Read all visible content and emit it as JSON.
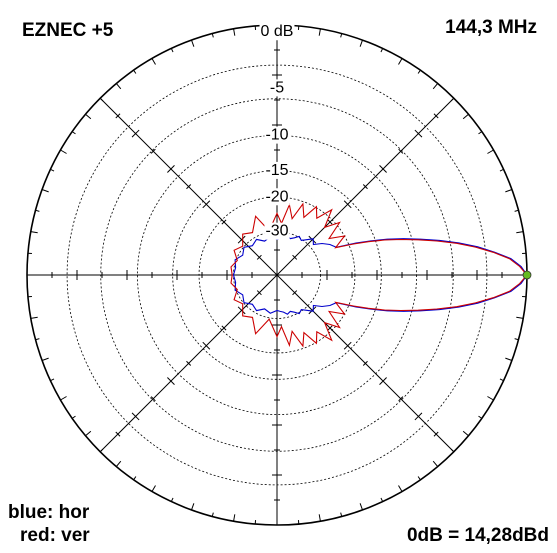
{
  "header": {
    "program": "EZNEC +5",
    "frequency": "144,3 MHz"
  },
  "footer": {
    "legend_line_1": "blue: hor",
    "legend_line_2": "red: ver",
    "reference": "0dB = 14,28dBd"
  },
  "chart_data": {
    "type": "polar",
    "radial_scale": "dB, outer ring = 0 dB",
    "radial_ticks": [
      "0 dB",
      "-5",
      "-10",
      "-15",
      "-20",
      "-30"
    ],
    "radial_tick_values": [
      0,
      -5,
      -10,
      -15,
      -20,
      -30
    ],
    "angle_zero": "right (3 o'clock), counter-clockwise",
    "angular_grid_step_deg": 45,
    "max_marker_angle_deg": 0,
    "series": [
      {
        "name": "hor",
        "color": "#0000cc",
        "angles_deg": [
          0,
          2,
          4,
          6,
          8,
          10,
          12,
          14,
          16,
          18,
          20,
          22,
          25,
          30,
          35,
          40,
          45,
          50,
          55,
          60,
          65,
          70,
          75,
          80,
          85,
          90,
          100,
          110,
          120,
          130,
          140,
          150,
          160,
          170,
          180
        ],
        "gain_db": [
          0,
          -0.4,
          -1.1,
          -2.3,
          -3.6,
          -5.2,
          -7.0,
          -9.0,
          -11.0,
          -13.2,
          -15.8,
          -18.5,
          -23.0,
          -24.2,
          -26.0,
          -28.5,
          -27.2,
          -29.0,
          -30.5,
          -29.6,
          -31.0,
          -32.0,
          -31.2,
          -32.5,
          -33.0,
          -33.5,
          -32.0,
          -33.2,
          -31.0,
          -32.2,
          -30.2,
          -31.6,
          -29.6,
          -30.6,
          -30.0
        ]
      },
      {
        "name": "ver",
        "color": "#cc0000",
        "angles_deg": [
          0,
          2,
          4,
          6,
          8,
          10,
          12,
          14,
          16,
          18,
          20,
          22,
          25,
          30,
          35,
          40,
          45,
          50,
          55,
          60,
          65,
          70,
          75,
          80,
          85,
          90,
          100,
          110,
          120,
          130,
          140,
          150,
          160,
          170,
          180
        ],
        "gain_db": [
          0,
          -0.5,
          -1.2,
          -2.4,
          -3.8,
          -5.4,
          -7.3,
          -9.3,
          -11.4,
          -13.6,
          -16.2,
          -19.0,
          -23.2,
          -20.0,
          -23.5,
          -19.2,
          -22.5,
          -18.5,
          -22.0,
          -19.8,
          -23.5,
          -20.5,
          -25.0,
          -21.5,
          -27.0,
          -24.0,
          -29.5,
          -23.8,
          -28.0,
          -26.5,
          -29.5,
          -27.8,
          -30.5,
          -28.8,
          -29.5
        ]
      }
    ]
  }
}
